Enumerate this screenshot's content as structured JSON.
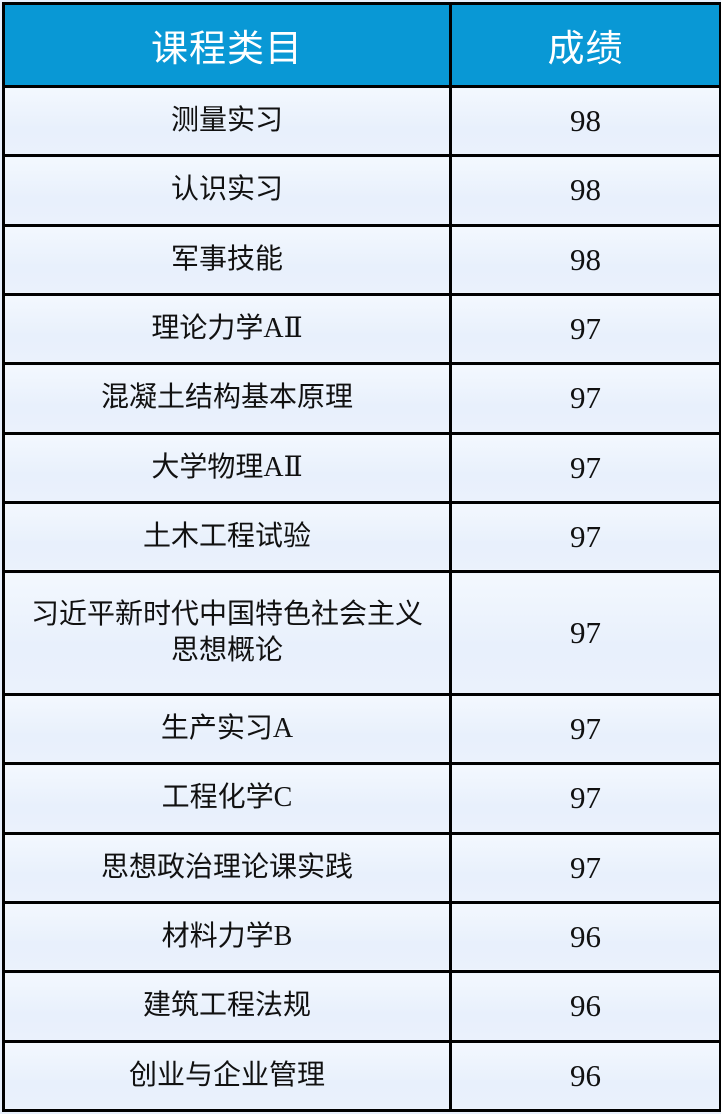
{
  "table": {
    "columns": [
      {
        "key": "course",
        "label": "课程类目"
      },
      {
        "key": "score",
        "label": "成绩"
      }
    ],
    "rows": [
      {
        "course": "测量实习",
        "score": "98"
      },
      {
        "course": "认识实习",
        "score": "98"
      },
      {
        "course": "军事技能",
        "score": "98"
      },
      {
        "course": "理论力学AⅡ",
        "score": "97"
      },
      {
        "course": "混凝土结构基本原理",
        "score": "97"
      },
      {
        "course": "大学物理AⅡ",
        "score": "97"
      },
      {
        "course": "土木工程试验",
        "score": "97"
      },
      {
        "course": "习近平新时代中国特色社会主义思想概论",
        "score": "97"
      },
      {
        "course": "生产实习A",
        "score": "97"
      },
      {
        "course": "工程化学C",
        "score": "97"
      },
      {
        "course": "思想政治理论课实践",
        "score": "97"
      },
      {
        "course": "材料力学B",
        "score": "96"
      },
      {
        "course": "建筑工程法规",
        "score": "96"
      },
      {
        "course": "创业与企业管理",
        "score": "96"
      }
    ]
  },
  "colors": {
    "header_bg": "#0998d5",
    "header_text": "#ffffff",
    "row_bg": "#e9f0fc",
    "border": "#000000",
    "page_bg": "#e7effb"
  }
}
